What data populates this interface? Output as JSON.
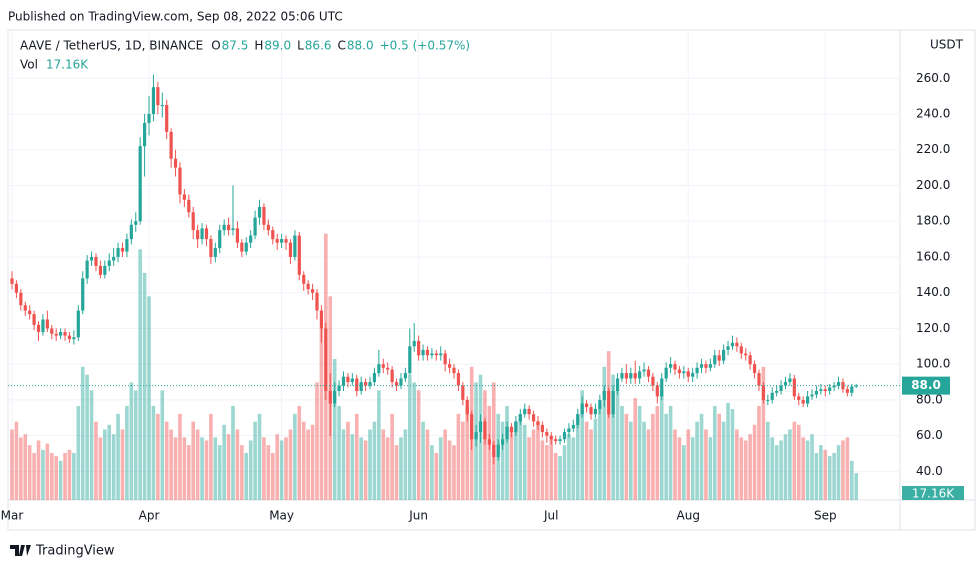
{
  "header": {
    "published": "Published on TradingView.com, Sep 08, 2022 05:06 UTC",
    "brand": "TradingView"
  },
  "chart_data": {
    "type": "candlestick",
    "currency": "USDT",
    "ohlc_legend": [
      {
        "label": "O",
        "value": "87.5"
      },
      {
        "label": "H",
        "value": "89.0"
      },
      {
        "label": "L",
        "value": "86.6"
      },
      {
        "label": "C",
        "value": "88.0"
      }
    ],
    "change": "+0.5 (+0.57%)",
    "volume_legend": "17.16K",
    "last_price_label": "88.0",
    "last_volume_label": "17.16K",
    "up_color": "#26a69a",
    "down_color": "#ef5350",
    "ylim": [
      24,
      287
    ],
    "yticks": [
      {
        "value": 40,
        "label": "40.0"
      },
      {
        "value": 60,
        "label": "60.0"
      },
      {
        "value": 80,
        "label": "80.0"
      },
      {
        "value": 100,
        "label": "100.0"
      },
      {
        "value": 120,
        "label": "120.0"
      },
      {
        "value": 140,
        "label": "140.0"
      },
      {
        "value": 160,
        "label": "160.0"
      },
      {
        "value": 180,
        "label": "180.0"
      },
      {
        "value": 200,
        "label": "200.0"
      },
      {
        "value": 220,
        "label": "220.0"
      },
      {
        "value": 240,
        "label": "240.0"
      },
      {
        "value": 260,
        "label": "260.0"
      }
    ],
    "y2lim": [
      0,
      300
    ],
    "grid": true,
    "categories": [
      "Mar",
      null,
      null,
      null,
      null,
      null,
      null,
      null,
      null,
      null,
      null,
      null,
      null,
      null,
      null,
      null,
      null,
      null,
      null,
      null,
      null,
      null,
      null,
      null,
      null,
      null,
      null,
      null,
      null,
      null,
      null,
      "Apr",
      null,
      null,
      null,
      null,
      null,
      null,
      null,
      null,
      null,
      null,
      null,
      null,
      null,
      null,
      null,
      null,
      null,
      null,
      null,
      null,
      null,
      null,
      null,
      null,
      null,
      null,
      null,
      null,
      null,
      "May",
      null,
      null,
      null,
      null,
      null,
      null,
      null,
      null,
      null,
      null,
      null,
      null,
      null,
      null,
      null,
      null,
      null,
      null,
      null,
      null,
      null,
      null,
      null,
      null,
      null,
      null,
      null,
      null,
      null,
      null,
      "Jun",
      null,
      null,
      null,
      null,
      null,
      null,
      null,
      null,
      null,
      null,
      null,
      null,
      null,
      null,
      null,
      null,
      null,
      null,
      null,
      null,
      null,
      null,
      null,
      null,
      null,
      null,
      null,
      null,
      null,
      "Jul",
      null,
      null,
      null,
      null,
      null,
      null,
      null,
      null,
      null,
      null,
      null,
      null,
      null,
      null,
      null,
      null,
      null,
      null,
      null,
      null,
      null,
      null,
      null,
      null,
      null,
      null,
      null,
      null,
      null,
      null,
      "Aug",
      null,
      null,
      null,
      null,
      null,
      null,
      null,
      null,
      null,
      null,
      null,
      null,
      null,
      null,
      null,
      null,
      null,
      null,
      null,
      null,
      null,
      null,
      null,
      null,
      null,
      null,
      null,
      null,
      null,
      null,
      "Sep",
      null,
      null,
      null,
      null,
      null,
      null,
      null
    ],
    "series": [
      {
        "name": "AAVE / TetherUS, 1D, BINANCE",
        "open": [
          148,
          145,
          140,
          133,
          130,
          128,
          122,
          118,
          125,
          120,
          117,
          116,
          118,
          116,
          114,
          115,
          130,
          148,
          158,
          160,
          155,
          150,
          155,
          158,
          160,
          165,
          163,
          170,
          178,
          180,
          222,
          235,
          240,
          255,
          245,
          245,
          230,
          215,
          210,
          195,
          192,
          185,
          175,
          170,
          176,
          170,
          160,
          165,
          175,
          178,
          175,
          176,
          168,
          163,
          168,
          172,
          182,
          188,
          178,
          175,
          170,
          168,
          170,
          168,
          160,
          172,
          150,
          145,
          142,
          140,
          130,
          120,
          85,
          78,
          85,
          88,
          93,
          90,
          92,
          85,
          90,
          88,
          90,
          95,
          100,
          98,
          97,
          90,
          88,
          92,
          95,
          110,
          113,
          105,
          108,
          105,
          106,
          105,
          106,
          100,
          98,
          95,
          88,
          80,
          72,
          58,
          62,
          68,
          58,
          55,
          48,
          55,
          58,
          65,
          62,
          68,
          72,
          75,
          72,
          68,
          66,
          62,
          60,
          58,
          57,
          58,
          62,
          64,
          66,
          72,
          78,
          76,
          72,
          75,
          80,
          85,
          72,
          85,
          92,
          95,
          92,
          95,
          92,
          96,
          97,
          93,
          88,
          82,
          92,
          98,
          100,
          97,
          95,
          96,
          93,
          95,
          98,
          100,
          98,
          100,
          105,
          102,
          108,
          110,
          112,
          110,
          106,
          105,
          100,
          95,
          88,
          80,
          80,
          84,
          85,
          88,
          90,
          92,
          82,
          80,
          78,
          82,
          83,
          85,
          86,
          85,
          87,
          88,
          90,
          86,
          84,
          87.5
        ],
        "high": [
          152,
          147,
          142,
          135,
          133,
          130,
          124,
          128,
          130,
          122,
          120,
          120,
          120,
          118,
          119,
          133,
          152,
          161,
          163,
          162,
          158,
          158,
          162,
          165,
          168,
          168,
          173,
          181,
          185,
          227,
          240,
          250,
          262,
          258,
          252,
          248,
          232,
          220,
          213,
          198,
          195,
          188,
          178,
          179,
          178,
          172,
          168,
          178,
          181,
          182,
          200,
          180,
          170,
          171,
          175,
          186,
          192,
          190,
          181,
          177,
          173,
          173,
          172,
          170,
          175,
          174,
          152,
          147,
          145,
          142,
          133,
          123,
          95,
          90,
          91,
          96,
          95,
          95,
          94,
          93,
          92,
          93,
          98,
          108,
          103,
          101,
          99,
          92,
          95,
          98,
          120,
          123,
          116,
          111,
          110,
          109,
          108,
          110,
          108,
          103,
          100,
          97,
          90,
          82,
          74,
          66,
          72,
          70,
          61,
          57,
          58,
          61,
          68,
          67,
          71,
          75,
          78,
          77,
          74,
          71,
          68,
          64,
          62,
          60,
          60,
          64,
          67,
          69,
          75,
          82,
          80,
          78,
          78,
          83,
          88,
          87,
          88,
          95,
          98,
          100,
          98,
          102,
          99,
          101,
          99,
          95,
          90,
          95,
          101,
          104,
          102,
          99,
          99,
          98,
          98,
          101,
          103,
          102,
          103,
          108,
          108,
          111,
          113,
          116,
          115,
          112,
          109,
          107,
          102,
          97,
          90,
          83,
          87,
          88,
          91,
          93,
          95,
          94,
          84,
          82,
          85,
          86,
          88,
          89,
          88,
          89,
          90,
          93,
          92,
          88,
          89,
          89
        ],
        "low": [
          142,
          137,
          130,
          127,
          125,
          119,
          113,
          116,
          118,
          114,
          113,
          114,
          113,
          112,
          111,
          113,
          128,
          145,
          155,
          152,
          148,
          148,
          152,
          155,
          157,
          160,
          160,
          167,
          174,
          178,
          205,
          228,
          236,
          240,
          238,
          226,
          210,
          205,
          190,
          188,
          182,
          170,
          165,
          167,
          166,
          156,
          157,
          162,
          172,
          172,
          172,
          165,
          160,
          161,
          165,
          170,
          178,
          175,
          172,
          167,
          164,
          165,
          164,
          156,
          158,
          147,
          141,
          139,
          136,
          125,
          112,
          80,
          60,
          76,
          82,
          85,
          87,
          88,
          82,
          83,
          85,
          86,
          88,
          93,
          95,
          94,
          87,
          85,
          86,
          90,
          94,
          107,
          102,
          102,
          102,
          103,
          102,
          102,
          96,
          95,
          92,
          85,
          77,
          68,
          52,
          54,
          56,
          55,
          52,
          44,
          46,
          52,
          56,
          59,
          60,
          66,
          70,
          69,
          65,
          63,
          59,
          56,
          55,
          55,
          55,
          56,
          59,
          62,
          64,
          70,
          73,
          69,
          70,
          72,
          76,
          70,
          70,
          83,
          90,
          89,
          89,
          89,
          89,
          93,
          90,
          85,
          78,
          80,
          90,
          95,
          94,
          92,
          92,
          90,
          90,
          92,
          95,
          95,
          96,
          98,
          99,
          100,
          105,
          108,
          107,
          103,
          102,
          97,
          92,
          85,
          78,
          77,
          78,
          82,
          83,
          86,
          88,
          80,
          77,
          76,
          76,
          80,
          81,
          83,
          82,
          83,
          85,
          86,
          84,
          82,
          82,
          86.6
        ],
        "close": [
          145,
          140,
          133,
          130,
          128,
          122,
          118,
          125,
          120,
          117,
          116,
          118,
          116,
          114,
          115,
          130,
          148,
          158,
          160,
          155,
          150,
          155,
          158,
          160,
          165,
          163,
          170,
          178,
          180,
          222,
          235,
          240,
          255,
          245,
          245,
          230,
          215,
          210,
          195,
          192,
          185,
          175,
          170,
          176,
          170,
          160,
          165,
          175,
          178,
          175,
          176,
          168,
          163,
          168,
          172,
          182,
          188,
          178,
          175,
          170,
          168,
          170,
          168,
          160,
          172,
          150,
          145,
          142,
          140,
          130,
          120,
          85,
          78,
          85,
          88,
          93,
          90,
          92,
          85,
          90,
          88,
          90,
          95,
          100,
          98,
          97,
          90,
          88,
          92,
          95,
          110,
          113,
          105,
          108,
          105,
          106,
          105,
          106,
          100,
          98,
          95,
          88,
          80,
          72,
          58,
          62,
          68,
          58,
          55,
          48,
          55,
          58,
          65,
          62,
          68,
          72,
          75,
          72,
          68,
          66,
          62,
          60,
          58,
          57,
          58,
          62,
          64,
          66,
          72,
          78,
          76,
          72,
          75,
          80,
          85,
          72,
          85,
          92,
          95,
          92,
          95,
          92,
          96,
          97,
          93,
          88,
          82,
          92,
          98,
          100,
          97,
          95,
          96,
          93,
          95,
          98,
          100,
          98,
          100,
          105,
          102,
          108,
          110,
          112,
          110,
          106,
          105,
          100,
          95,
          88,
          80,
          80,
          84,
          85,
          88,
          90,
          92,
          82,
          80,
          78,
          82,
          83,
          85,
          86,
          85,
          87,
          88,
          90,
          86,
          84,
          87.5,
          88
        ]
      },
      {
        "name": "Vol",
        "type": "bar",
        "axis": "y2",
        "values": [
          45,
          50,
          40,
          42,
          35,
          30,
          38,
          32,
          36,
          30,
          28,
          25,
          30,
          32,
          30,
          60,
          85,
          80,
          70,
          50,
          40,
          45,
          48,
          42,
          55,
          45,
          60,
          75,
          70,
          160,
          145,
          130,
          60,
          55,
          70,
          50,
          45,
          40,
          55,
          40,
          35,
          50,
          45,
          40,
          38,
          55,
          40,
          35,
          48,
          42,
          60,
          45,
          35,
          30,
          38,
          50,
          55,
          40,
          35,
          30,
          42,
          38,
          40,
          45,
          55,
          60,
          50,
          45,
          48,
          75,
          110,
          170,
          130,
          90,
          60,
          45,
          50,
          42,
          55,
          40,
          38,
          45,
          50,
          70,
          45,
          40,
          55,
          35,
          40,
          45,
          80,
          75,
          70,
          50,
          45,
          35,
          30,
          40,
          45,
          38,
          35,
          55,
          50,
          60,
          85,
          75,
          80,
          70,
          60,
          75,
          55,
          50,
          60,
          45,
          50,
          55,
          48,
          40,
          45,
          50,
          38,
          35,
          40,
          30,
          28,
          35,
          42,
          40,
          55,
          70,
          50,
          45,
          52,
          60,
          85,
          95,
          80,
          70,
          60,
          55,
          50,
          65,
          60,
          50,
          45,
          55,
          60,
          70,
          55,
          60,
          45,
          40,
          35,
          45,
          40,
          50,
          55,
          45,
          40,
          60,
          55,
          50,
          62,
          58,
          45,
          40,
          38,
          42,
          48,
          60,
          85,
          50,
          40,
          35,
          38,
          42,
          45,
          50,
          48,
          40,
          38,
          42,
          30,
          35,
          32,
          28,
          30,
          35,
          38,
          40,
          25,
          17.16
        ]
      }
    ]
  }
}
